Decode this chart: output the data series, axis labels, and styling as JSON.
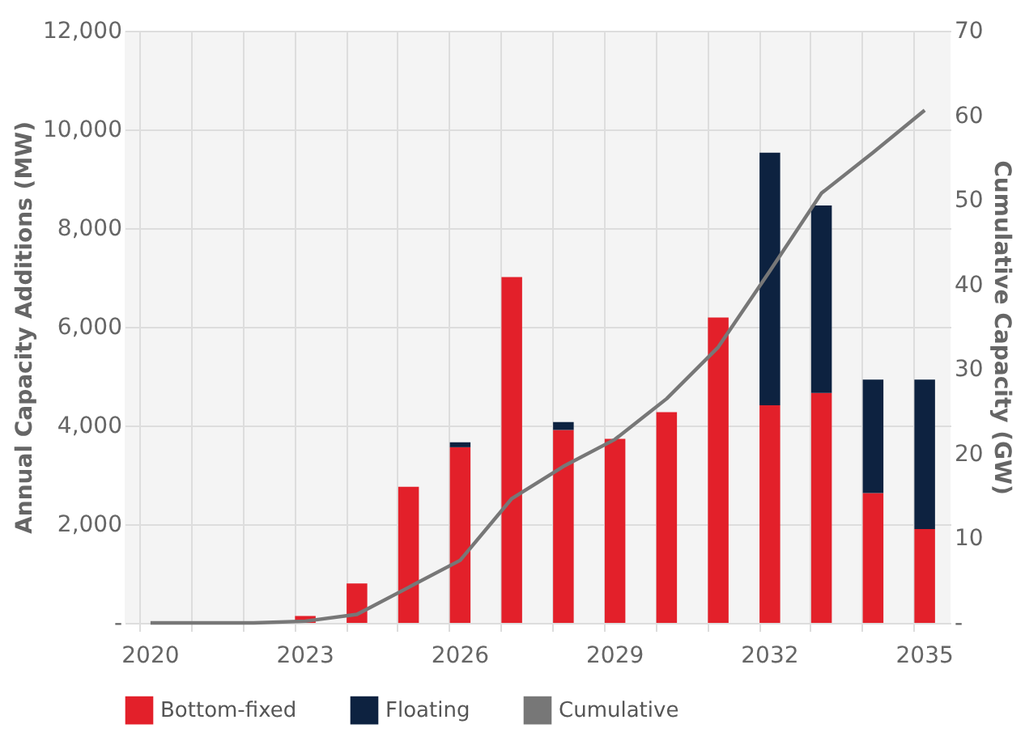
{
  "chart_data": {
    "type": "bar",
    "stacked": true,
    "categories": [
      "2020",
      null,
      null,
      "2023",
      null,
      null,
      "2026",
      null,
      null,
      "2029",
      null,
      null,
      "2032",
      null,
      null,
      "2035"
    ],
    "ylabel": "Annual Capacity Additions (MW)",
    "y2label": "Cumulative Capacity (GW)",
    "ylim": [
      0,
      12000
    ],
    "yticks": [
      {
        "value": 0,
        "label": "-"
      },
      {
        "value": 2000,
        "label": "2,000"
      },
      {
        "value": 4000,
        "label": "4,000"
      },
      {
        "value": 6000,
        "label": "6,000"
      },
      {
        "value": 8000,
        "label": "8,000"
      },
      {
        "value": 10000,
        "label": "10,000"
      },
      {
        "value": 12000,
        "label": "12,000"
      }
    ],
    "y2lim": [
      0,
      70
    ],
    "y2ticks": [
      {
        "value": 0,
        "label": "-"
      },
      10,
      20,
      30,
      40,
      50,
      60,
      70
    ],
    "grid": true,
    "legend": "bottom",
    "series": [
      {
        "name": "Bottom-fixed",
        "color": "#e3202a",
        "values": [
          0,
          0,
          0,
          140,
          800,
          2760,
          3560,
          7010,
          3910,
          3730,
          4270,
          6190,
          4410,
          4660,
          2630,
          1900
        ]
      },
      {
        "name": "Floating",
        "color": "#0d2240",
        "values": [
          0,
          0,
          0,
          0,
          0,
          0,
          100,
          0,
          160,
          0,
          0,
          0,
          5120,
          3800,
          2300,
          3030
        ]
      },
      {
        "name": "Cumulative",
        "color": "#777777",
        "type": "line",
        "axis": "y2",
        "values": [
          0,
          0,
          0,
          0.2,
          1.0,
          4.2,
          7.4,
          14.7,
          18.5,
          21.7,
          26.5,
          32.6,
          41.6,
          50.8,
          55.6,
          60.6
        ]
      }
    ]
  }
}
